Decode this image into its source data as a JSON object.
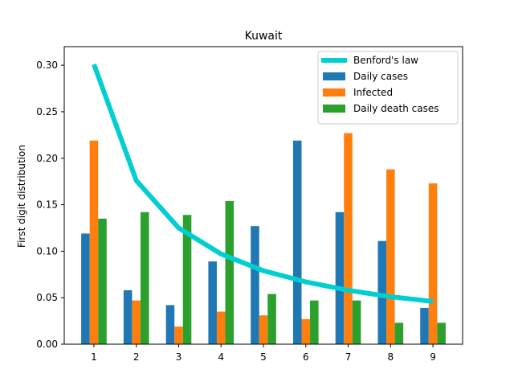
{
  "chart_data": {
    "type": "bar",
    "title": "Kuwait",
    "xlabel": "",
    "ylabel": "First digit distribution",
    "categories": [
      "1",
      "2",
      "3",
      "4",
      "5",
      "6",
      "7",
      "8",
      "9"
    ],
    "ylim": [
      0,
      0.32
    ],
    "yticks": [
      0.0,
      0.05,
      0.1,
      0.15,
      0.2,
      0.25,
      0.3
    ],
    "ytick_labels": [
      "0.00",
      "0.05",
      "0.10",
      "0.15",
      "0.20",
      "0.25",
      "0.30"
    ],
    "grid": false,
    "legend_position": "top-right",
    "series": [
      {
        "name": "Daily cases",
        "type": "bar",
        "color": "#1f77b4",
        "values": [
          0.119,
          0.058,
          0.042,
          0.089,
          0.127,
          0.219,
          0.142,
          0.111,
          0.039
        ]
      },
      {
        "name": "Infected",
        "type": "bar",
        "color": "#ff7f0e",
        "values": [
          0.219,
          0.047,
          0.019,
          0.035,
          0.031,
          0.027,
          0.227,
          0.188,
          0.173
        ]
      },
      {
        "name": "Daily death cases",
        "type": "bar",
        "color": "#2ca02c",
        "values": [
          0.135,
          0.142,
          0.139,
          0.154,
          0.054,
          0.047,
          0.047,
          0.023,
          0.023
        ]
      }
    ],
    "line_series": {
      "name": "Benford's law",
      "type": "line",
      "color": "#00ced1",
      "values": [
        0.301,
        0.176,
        0.125,
        0.097,
        0.079,
        0.067,
        0.058,
        0.051,
        0.046
      ]
    }
  }
}
